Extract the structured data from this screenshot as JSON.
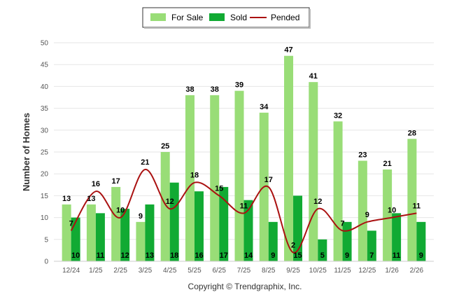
{
  "chart_data": {
    "type": "bar",
    "categories": [
      "12/24",
      "1/25",
      "2/25",
      "3/25",
      "4/25",
      "5/25",
      "6/25",
      "7/25",
      "8/25",
      "9/25",
      "10/25",
      "11/25",
      "12/25",
      "1/26",
      "2/26"
    ],
    "series": [
      {
        "name": "For Sale",
        "kind": "bar",
        "color": "#99dd77",
        "values": [
          13,
          13,
          17,
          9,
          25,
          38,
          38,
          39,
          34,
          47,
          41,
          32,
          23,
          21,
          28
        ]
      },
      {
        "name": "Sold",
        "kind": "bar",
        "color": "#11aa33",
        "values": [
          10,
          11,
          12,
          13,
          18,
          16,
          17,
          14,
          9,
          15,
          5,
          9,
          7,
          11,
          9
        ]
      },
      {
        "name": "Pended",
        "kind": "line",
        "color": "#aa1111",
        "values": [
          7,
          16,
          10,
          21,
          12,
          18,
          15,
          11,
          17,
          2,
          12,
          7,
          9,
          10,
          11
        ]
      }
    ],
    "ylabel": "Number of Homes",
    "ylim": [
      0,
      50
    ],
    "yticks": [
      0,
      5,
      10,
      15,
      20,
      25,
      30,
      35,
      40,
      45,
      50
    ],
    "grid": true,
    "legend_position": "top-center",
    "copyright": "Copyright © Trendgraphix, Inc."
  }
}
